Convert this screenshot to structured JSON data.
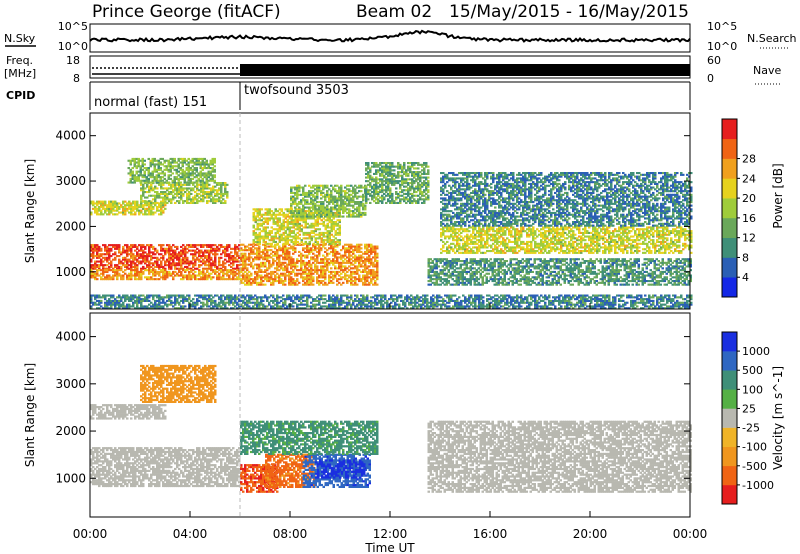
{
  "header": {
    "station": "Prince George (fitACF)",
    "beam": "Beam 02",
    "date_range": "15/May/2015 - 16/May/2015"
  },
  "top_panels": {
    "nsky_label": "N.Sky",
    "nsky_ticks": [
      "10^5",
      "10^0"
    ],
    "nsearch_label": "N.Search",
    "nsearch_ticks": [
      "10^5",
      "10^0"
    ],
    "freq_label_line1": "Freq.",
    "freq_label_line2": "[MHz]",
    "freq_ticks": [
      "18",
      "8"
    ],
    "nave_label": "Nave",
    "nave_ticks": [
      "60",
      "0"
    ],
    "cpid_label": "CPID",
    "cpid_segments": [
      {
        "name": "normal (fast) 151",
        "start_hour": 0,
        "end_hour": 6
      },
      {
        "name": "twofsound 3503",
        "start_hour": 6,
        "end_hour": 24
      }
    ]
  },
  "colors": {
    "power_scale": [
      "#1428e6",
      "#2a5fb5",
      "#3f8f78",
      "#6aa85a",
      "#9fcc3a",
      "#e6d21e",
      "#f0a01e",
      "#f06414",
      "#e61e1e"
    ],
    "velocity_scale": [
      "#1a2fe0",
      "#2f67c2",
      "#3f8f78",
      "#55b045",
      "#b8b8b0",
      "#f0b428",
      "#f0961e",
      "#f06414",
      "#e61e1e"
    ],
    "ground_scatter": "#b8b8b0"
  },
  "chart_data": [
    {
      "type": "heatmap",
      "panel": "power",
      "ylabel": "Slant Range [km]",
      "ylim": [
        180,
        4500
      ],
      "yticks": [
        1000,
        2000,
        3000,
        4000
      ],
      "xlim": [
        0,
        24
      ],
      "colorbar_label": "Power [dB]",
      "colorbar_ticks": [
        4,
        8,
        12,
        16,
        20,
        24,
        28
      ],
      "colorbar_range": [
        0,
        32
      ],
      "regions": [
        {
          "t": [
            0,
            6
          ],
          "r": [
            1050,
            1600
          ],
          "level": 28
        },
        {
          "t": [
            0,
            6
          ],
          "r": [
            820,
            1050
          ],
          "level": 24
        },
        {
          "t": [
            0,
            3
          ],
          "r": [
            2250,
            2550
          ],
          "level": 18
        },
        {
          "t": [
            2,
            5.5
          ],
          "r": [
            2500,
            2950
          ],
          "level": 16
        },
        {
          "t": [
            1.5,
            5
          ],
          "r": [
            2950,
            3500
          ],
          "level": 14
        },
        {
          "t": [
            6,
            11.5
          ],
          "r": [
            700,
            1600
          ],
          "level": 24
        },
        {
          "t": [
            6.5,
            10
          ],
          "r": [
            1600,
            2400
          ],
          "level": 18
        },
        {
          "t": [
            8,
            11
          ],
          "r": [
            2200,
            2900
          ],
          "level": 14
        },
        {
          "t": [
            11,
            13.5
          ],
          "r": [
            2500,
            3400
          ],
          "level": 12
        },
        {
          "t": [
            14,
            24
          ],
          "r": [
            1400,
            2000
          ],
          "level": 18
        },
        {
          "t": [
            13.5,
            24
          ],
          "r": [
            700,
            1300
          ],
          "level": 10
        },
        {
          "t": [
            0,
            24
          ],
          "r": [
            180,
            500
          ],
          "level": 8
        },
        {
          "t": [
            14,
            24
          ],
          "r": [
            2000,
            3200
          ],
          "level": 8
        }
      ]
    },
    {
      "type": "heatmap",
      "panel": "velocity",
      "ylabel": "Slant Range [km]",
      "xlabel": "Time UT",
      "ylim": [
        180,
        4500
      ],
      "yticks": [
        1000,
        2000,
        3000,
        4000
      ],
      "xlim": [
        0,
        24
      ],
      "xticks": [
        "00:00",
        "04:00",
        "08:00",
        "12:00",
        "16:00",
        "20:00",
        "00:00"
      ],
      "colorbar_label": "Velocity [m s^-1]",
      "colorbar_ticks": [
        "1000",
        "500",
        "100",
        "25",
        "-25",
        "-100",
        "-500",
        "-1000"
      ],
      "regions": [
        {
          "t": [
            0,
            6
          ],
          "r": [
            820,
            1650
          ],
          "v": 0
        },
        {
          "t": [
            0,
            3
          ],
          "r": [
            2250,
            2550
          ],
          "v": 0
        },
        {
          "t": [
            6,
            7.5
          ],
          "r": [
            700,
            1300
          ],
          "v": -700
        },
        {
          "t": [
            7,
            9
          ],
          "r": [
            800,
            1500
          ],
          "v": -400
        },
        {
          "t": [
            8.5,
            11.2
          ],
          "r": [
            800,
            1500
          ],
          "v": 600
        },
        {
          "t": [
            9,
            11
          ],
          "r": [
            1000,
            1400
          ],
          "v": 1000
        },
        {
          "t": [
            6,
            11.5
          ],
          "r": [
            1500,
            2200
          ],
          "v": 80
        },
        {
          "t": [
            13.5,
            24
          ],
          "r": [
            700,
            2200
          ],
          "v": 0
        },
        {
          "t": [
            2,
            5
          ],
          "r": [
            2600,
            3400
          ],
          "v": -150
        }
      ]
    }
  ]
}
